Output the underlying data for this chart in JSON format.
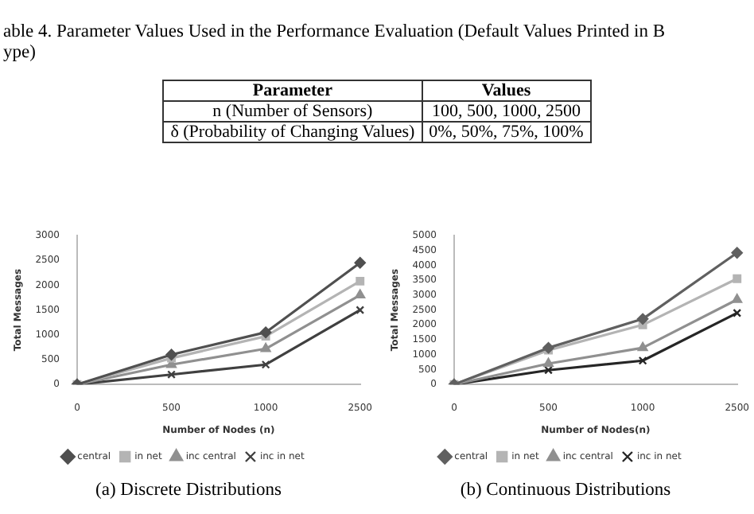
{
  "chart_data": [
    {
      "type": "other",
      "title": "able 4. Parameter Values Used in the Performance Evaluation (Default Values Printed in B",
      "subtitle": "ype)",
      "annotations": [
        "Parameter",
        "Values",
        "n (Number of Sensors)",
        "100, 500, 1000, 2500",
        "δ (Probability of Changing Values)",
        "0%, 50%, 75%, 100%"
      ]
    },
    {
      "type": "line",
      "title": "(a) Discrete Distributions",
      "xlabel": "Number of Nodes (n)",
      "ylabel": "Total Messages",
      "categories": [
        "0",
        "500",
        "1000",
        "2500"
      ],
      "ylim": [
        0,
        3000
      ],
      "yticks": [
        0,
        500,
        1000,
        1500,
        2000,
        2500,
        3000
      ],
      "grid": false,
      "legend": "bottom",
      "series": [
        {
          "name": "central",
          "color": "#505050",
          "marker": "diamond",
          "values": [
            0,
            600,
            1050,
            2450
          ]
        },
        {
          "name": "in net",
          "color": "#b4b4b4",
          "marker": "square",
          "values": [
            0,
            530,
            970,
            2080
          ]
        },
        {
          "name": "inc central",
          "color": "#909090",
          "marker": "triangle",
          "values": [
            0,
            400,
            720,
            1800
          ]
        },
        {
          "name": "inc in net",
          "color": "#404040",
          "marker": "cross",
          "values": [
            0,
            200,
            400,
            1500
          ]
        }
      ]
    },
    {
      "type": "line",
      "title": "(b) Continuous Distributions",
      "xlabel": "Number of Nodes(n)",
      "ylabel": "Total Messages",
      "categories": [
        "0",
        "500",
        "1000",
        "2500"
      ],
      "ylim": [
        0,
        5000
      ],
      "yticks": [
        0,
        500,
        1000,
        1500,
        2000,
        2500,
        3000,
        3500,
        4000,
        4500,
        5000
      ],
      "grid": false,
      "legend": "bottom",
      "series": [
        {
          "name": "central",
          "color": "#606060",
          "marker": "diamond",
          "values": [
            0,
            1230,
            2200,
            4420
          ]
        },
        {
          "name": "in net",
          "color": "#b4b4b4",
          "marker": "square",
          "values": [
            0,
            1150,
            2000,
            3550
          ]
        },
        {
          "name": "inc central",
          "color": "#909090",
          "marker": "triangle",
          "values": [
            0,
            700,
            1230,
            2850
          ]
        },
        {
          "name": "inc in net",
          "color": "#262626",
          "marker": "cross",
          "values": [
            0,
            480,
            800,
            2400
          ]
        }
      ]
    }
  ]
}
